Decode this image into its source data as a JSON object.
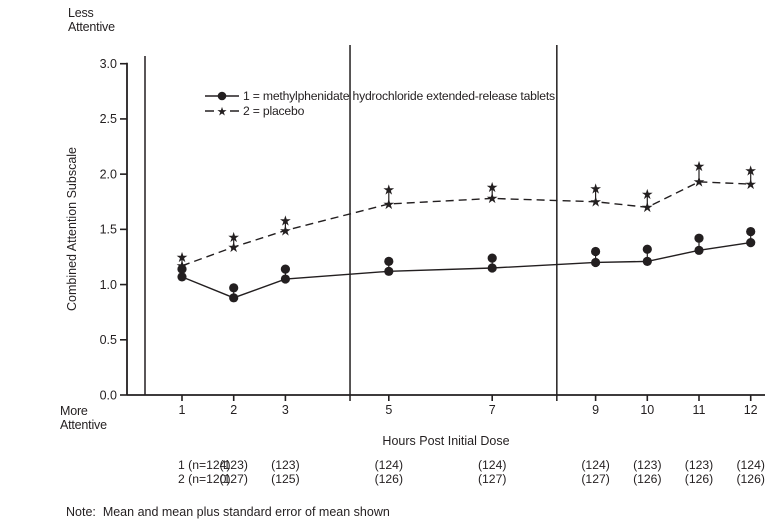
{
  "colors": {
    "ink": "#231f20",
    "background": "#ffffff"
  },
  "labels": {
    "less_attentive": [
      "Less",
      "Attentive"
    ],
    "more_attentive": [
      "More",
      "Attentive"
    ]
  },
  "chart_data": {
    "type": "line",
    "title": "",
    "xlabel": "Hours Post Initial Dose",
    "ylabel": "Combined Attention Subscale",
    "y_axis_top_annotation": "Less Attentive",
    "y_axis_bottom_annotation": "More Attentive",
    "ylim": [
      0.0,
      3.0
    ],
    "yticks": [
      0.0,
      0.5,
      1.0,
      1.5,
      2.0,
      2.5,
      3.0
    ],
    "x": [
      1,
      2,
      3,
      5,
      7,
      9,
      10,
      11,
      12
    ],
    "xticklabels": [
      "1",
      "2",
      "3",
      "5",
      "7",
      "9",
      "10",
      "11",
      "12"
    ],
    "grid": false,
    "legend_position": "top-left-inside",
    "dividers_at_hours": [
      4.25,
      8.25
    ],
    "note": "Note:  Mean and mean plus standard error of mean shown",
    "series": [
      {
        "id": "1",
        "label": "1 = methylphenidate hydrochloride extended-release tablets",
        "marker": "circle",
        "line": "solid",
        "mean": [
          1.07,
          0.88,
          1.05,
          1.12,
          1.15,
          1.2,
          1.21,
          1.31,
          1.38
        ],
        "mean_plus_se": [
          1.14,
          0.97,
          1.14,
          1.21,
          1.24,
          1.3,
          1.32,
          1.42,
          1.48
        ],
        "n_row": [
          "1 (n=124)",
          "(123)",
          "(123)",
          "(124)",
          "(124)",
          "(124)",
          "(123)",
          "(123)",
          "(124)"
        ]
      },
      {
        "id": "2",
        "label": "2 = placebo",
        "marker": "star",
        "line": "dashed",
        "mean": [
          1.17,
          1.34,
          1.49,
          1.73,
          1.78,
          1.75,
          1.7,
          1.93,
          1.91
        ],
        "mean_plus_se": [
          1.25,
          1.43,
          1.58,
          1.86,
          1.88,
          1.87,
          1.82,
          2.07,
          2.03
        ],
        "n_row": [
          "2 (n=120)",
          "(127)",
          "(125)",
          "(126)",
          "(127)",
          "(127)",
          "(126)",
          "(126)",
          "(126)"
        ]
      }
    ]
  }
}
